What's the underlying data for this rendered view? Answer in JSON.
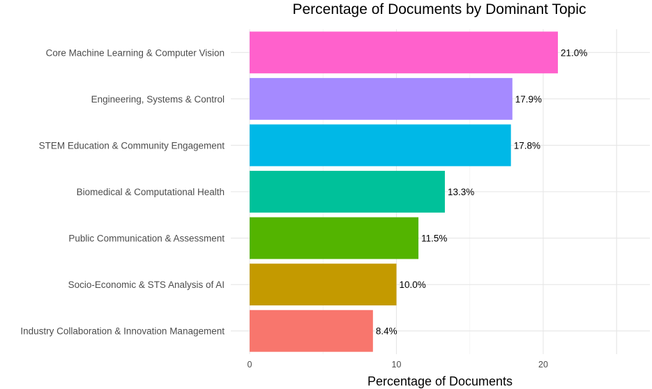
{
  "chart_data": {
    "type": "bar",
    "orientation": "horizontal",
    "title": "Percentage of Documents by Dominant Topic",
    "xlabel": "Percentage of Documents",
    "ylabel": "",
    "xlim": [
      0,
      26.5
    ],
    "xticks": [
      0,
      10,
      20
    ],
    "xtick_labels": [
      "0",
      "10",
      "20"
    ],
    "grid": true,
    "legend": "none",
    "categories": [
      "Core Machine Learning & Computer Vision",
      "Engineering, Systems & Control",
      "STEM Education & Community Engagement",
      "Biomedical & Computational Health",
      "Public Communication & Assessment",
      "Socio-Economic & STS Analysis of AI",
      "Industry Collaboration & Innovation Management"
    ],
    "values": [
      21.0,
      17.9,
      17.8,
      13.3,
      11.5,
      10.0,
      8.4
    ],
    "data_labels": [
      "21.0%",
      "17.9%",
      "17.8%",
      "13.3%",
      "11.5%",
      "10.0%",
      "8.4%"
    ],
    "colors": [
      "#FF61CC",
      "#A58AFF",
      "#00B8E7",
      "#00C19A",
      "#53B400",
      "#C49A00",
      "#F8766D"
    ]
  }
}
